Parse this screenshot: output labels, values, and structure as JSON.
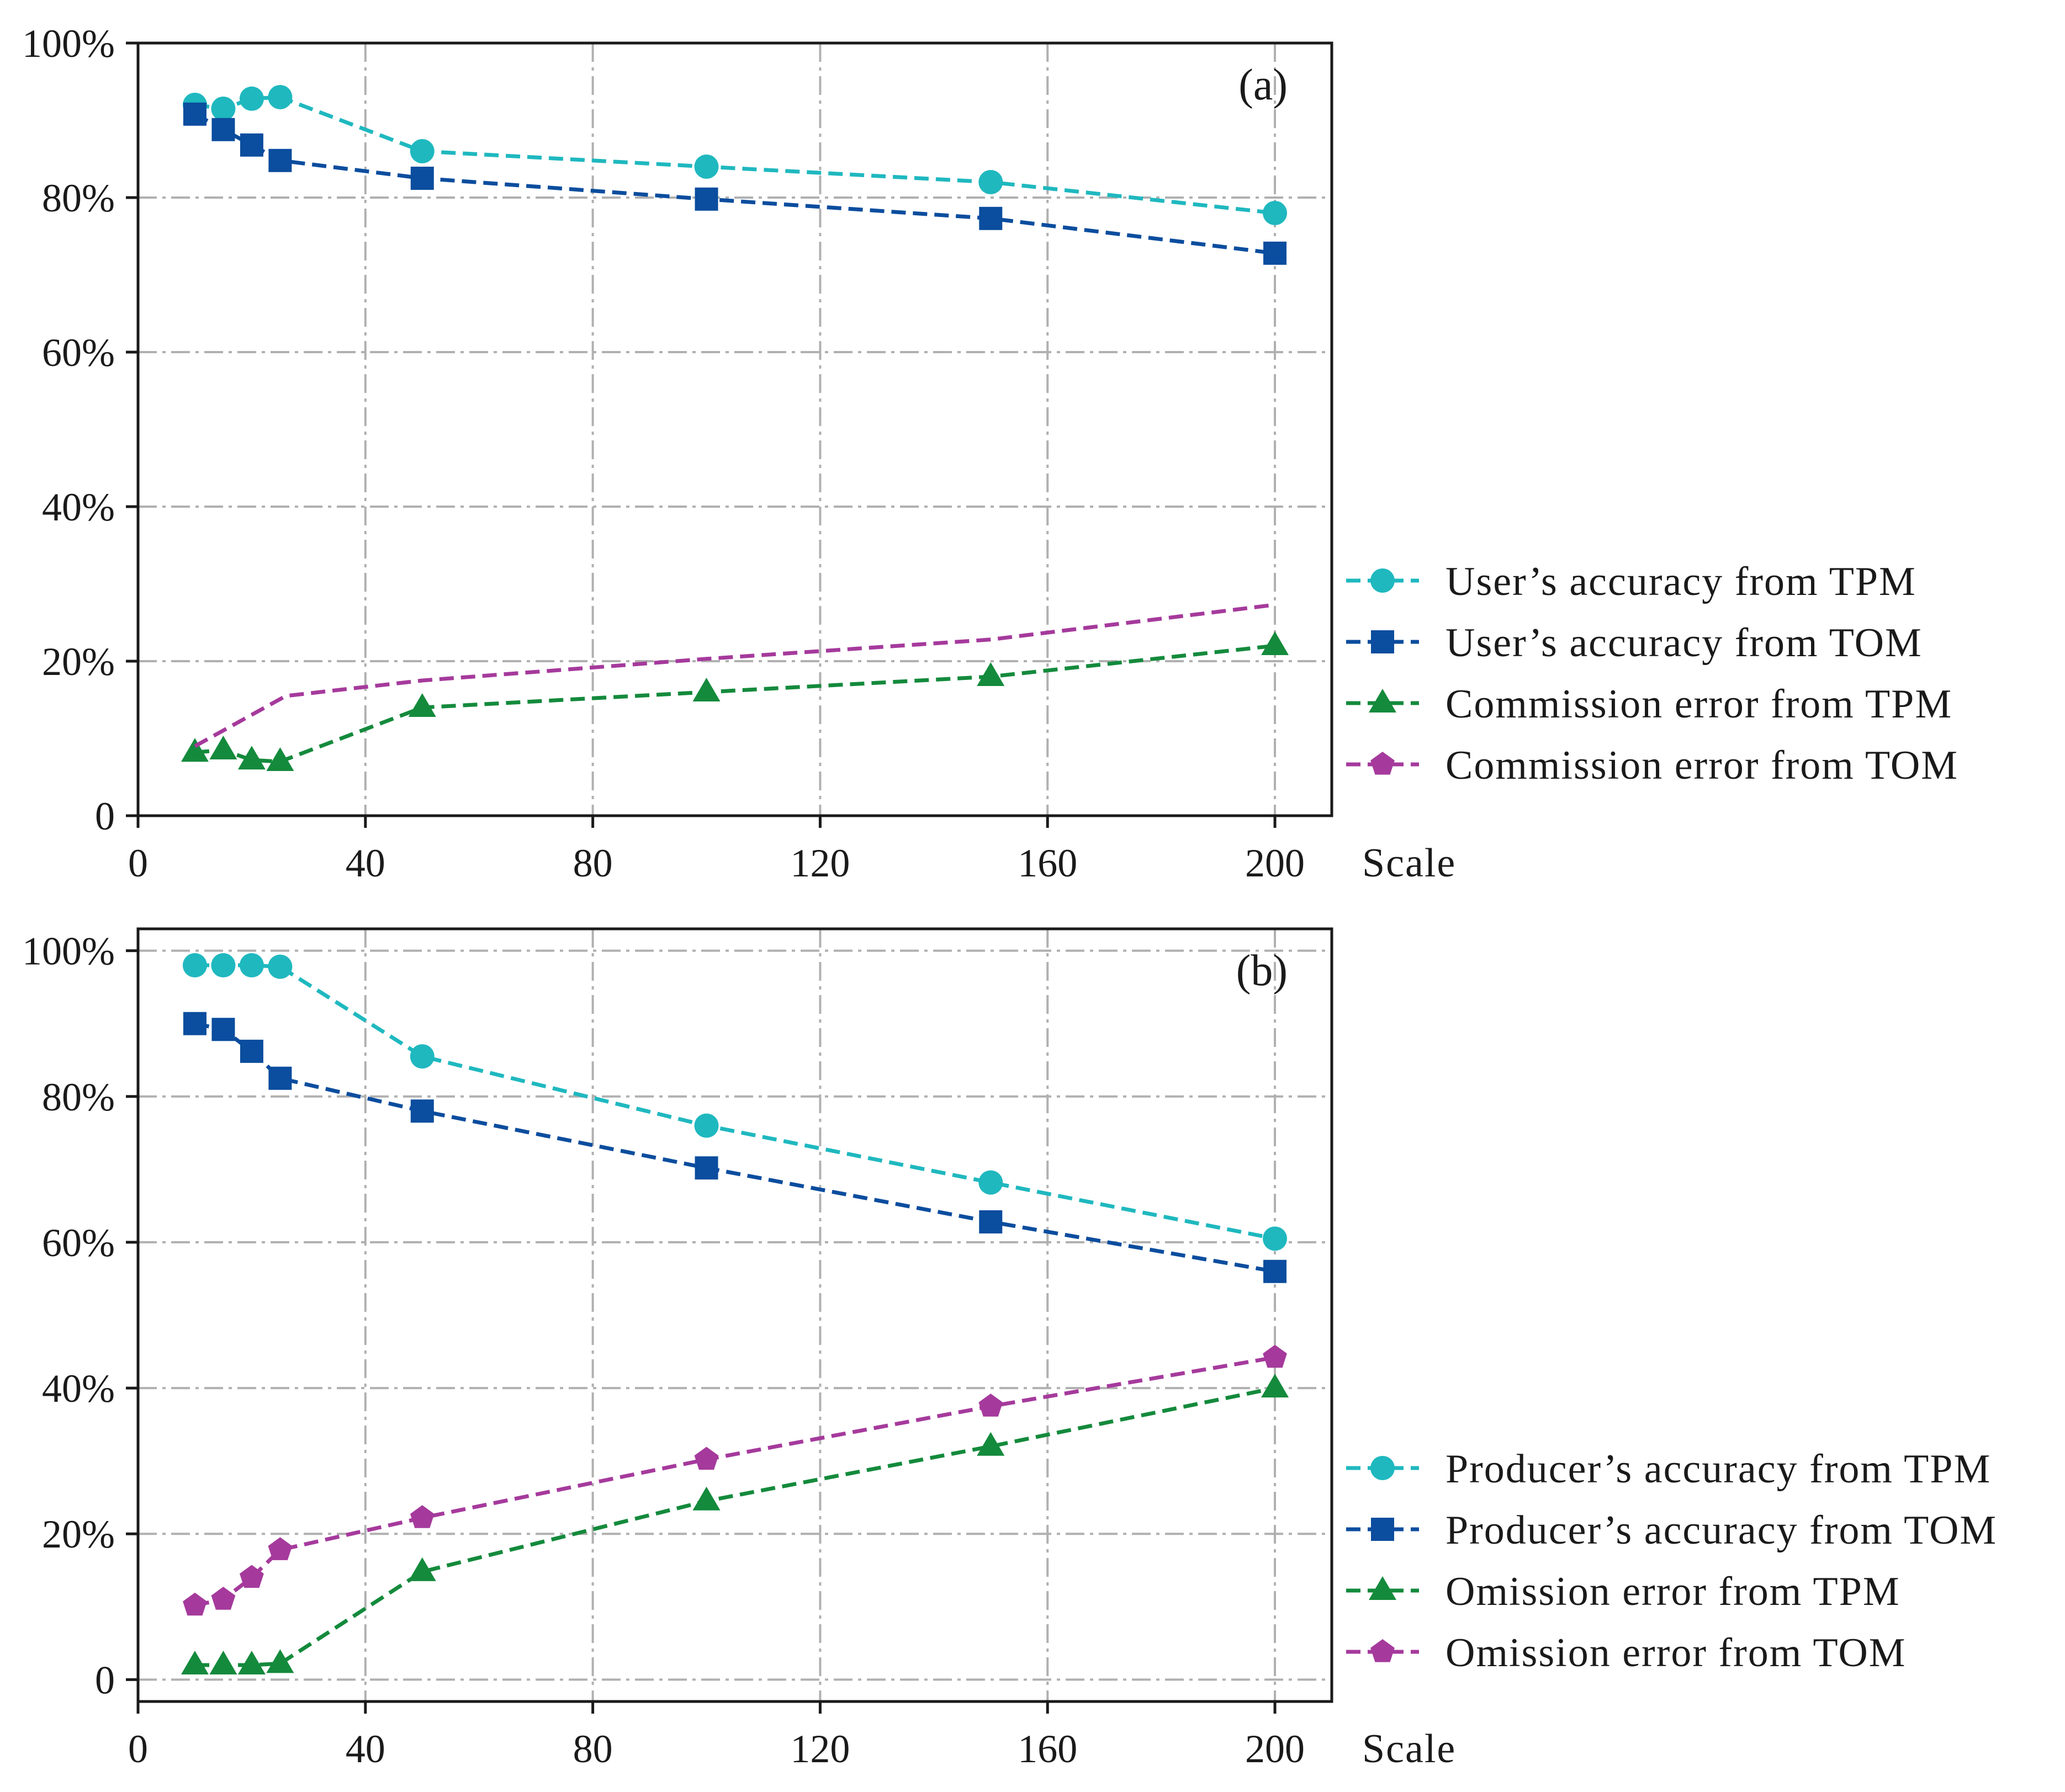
{
  "chart_data": [
    {
      "type": "line",
      "panel_label": "(a)",
      "xlabel": "Scale",
      "ylabel": "",
      "xlim": [
        0,
        210
      ],
      "ylim": [
        0,
        100
      ],
      "xticks": [
        0,
        40,
        80,
        120,
        160,
        200
      ],
      "xtick_labels": [
        "0",
        "40",
        "80",
        "120",
        "160",
        "200"
      ],
      "yticks": [
        0,
        20,
        40,
        60,
        80,
        100
      ],
      "ytick_labels": [
        "0",
        "20%",
        "40%",
        "60%",
        "80%",
        "100%"
      ],
      "grid": true,
      "legend_position": "right",
      "series": [
        {
          "name": "User’s accuracy from TPM",
          "color": "#1fb8bf",
          "marker": "circle",
          "show_markers": true,
          "x": [
            10,
            15,
            20,
            25,
            50,
            100,
            150,
            200
          ],
          "y": [
            92,
            91.5,
            92.8,
            93,
            86,
            84,
            82,
            78
          ]
        },
        {
          "name": "User’s accuracy from TOM",
          "color": "#0b4d9e",
          "marker": "square",
          "show_markers": true,
          "x": [
            10,
            15,
            20,
            25,
            50,
            100,
            150,
            200
          ],
          "y": [
            90.8,
            88.8,
            86.8,
            84.8,
            82.5,
            79.8,
            77.3,
            72.8
          ]
        },
        {
          "name": "Commission error from TPM",
          "color": "#148a3c",
          "marker": "triangle",
          "show_markers": true,
          "x": [
            10,
            15,
            20,
            25,
            50,
            100,
            150,
            200
          ],
          "y": [
            8.2,
            8.5,
            7.2,
            7,
            14,
            16,
            18,
            22
          ]
        },
        {
          "name": "Commission error from TOM",
          "color": "#a53a9c",
          "marker": "pentagon",
          "show_markers": false,
          "x": [
            10,
            26,
            50,
            100,
            150,
            200
          ],
          "y": [
            9,
            15.5,
            17.5,
            20.3,
            22.8,
            27.3
          ]
        }
      ]
    },
    {
      "type": "line",
      "panel_label": "(b)",
      "xlabel": "Scale",
      "ylabel": "",
      "xlim": [
        0,
        210
      ],
      "ylim": [
        -3,
        103
      ],
      "xticks": [
        0,
        40,
        80,
        120,
        160,
        200
      ],
      "xtick_labels": [
        "0",
        "40",
        "80",
        "120",
        "160",
        "200"
      ],
      "yticks": [
        0,
        20,
        40,
        60,
        80,
        100
      ],
      "ytick_labels": [
        "0",
        "20%",
        "40%",
        "60%",
        "80%",
        "100%"
      ],
      "grid": true,
      "legend_position": "right",
      "series": [
        {
          "name": "Producer’s accuracy from TPM",
          "color": "#1fb8bf",
          "marker": "circle",
          "show_markers": true,
          "x": [
            10,
            15,
            20,
            25,
            50,
            100,
            150,
            200
          ],
          "y": [
            98,
            98,
            98,
            97.8,
            85.5,
            76,
            68.2,
            60.5
          ]
        },
        {
          "name": "Producer’s accuracy from TOM",
          "color": "#0b4d9e",
          "marker": "square",
          "show_markers": true,
          "x": [
            10,
            15,
            20,
            25,
            50,
            100,
            150,
            200
          ],
          "y": [
            90,
            89.2,
            86.2,
            82.5,
            78,
            70.2,
            62.8,
            56
          ]
        },
        {
          "name": "Omission error from TPM",
          "color": "#148a3c",
          "marker": "triangle",
          "show_markers": true,
          "x": [
            10,
            15,
            20,
            25,
            50,
            100,
            150,
            200
          ],
          "y": [
            2,
            2,
            2,
            2.2,
            14.8,
            24.5,
            32,
            40
          ]
        },
        {
          "name": "Omission error from TOM",
          "color": "#a53a9c",
          "marker": "pentagon",
          "show_markers": true,
          "x": [
            10,
            15,
            20,
            25,
            50,
            100,
            150,
            200
          ],
          "y": [
            10.2,
            11,
            14,
            17.8,
            22.2,
            30.2,
            37.5,
            44.2
          ]
        }
      ]
    }
  ]
}
